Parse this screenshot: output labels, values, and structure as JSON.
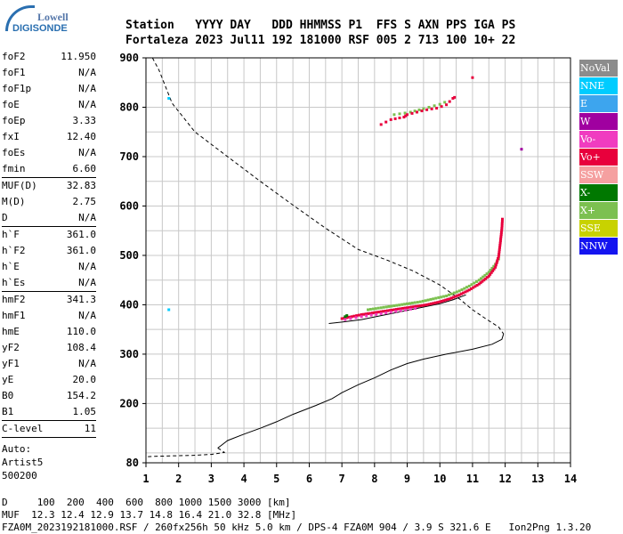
{
  "logo": {
    "line1": "Lowell",
    "line2": "DIGISONDE"
  },
  "header": {
    "row1": "Station   YYYY DAY   DDD HHMMSS P1  FFS S AXN PPS IGA PS",
    "row2": "Fortaleza 2023 Jul11 192 181000 RSF 005 2 713 100 10+ 22"
  },
  "params": {
    "group1": [
      {
        "k": "foF2",
        "v": "11.950"
      },
      {
        "k": "foF1",
        "v": "N/A"
      },
      {
        "k": "foF1p",
        "v": "N/A"
      },
      {
        "k": "foE",
        "v": "N/A"
      },
      {
        "k": "foEp",
        "v": "3.33"
      },
      {
        "k": "fxI",
        "v": "12.40"
      },
      {
        "k": "foEs",
        "v": "N/A"
      },
      {
        "k": "fmin",
        "v": "6.60"
      }
    ],
    "group2": [
      {
        "k": "MUF(D)",
        "v": "32.83"
      },
      {
        "k": "M(D)",
        "v": "2.75"
      },
      {
        "k": "D",
        "v": "N/A"
      }
    ],
    "group3": [
      {
        "k": "h`F",
        "v": "361.0"
      },
      {
        "k": "h`F2",
        "v": "361.0"
      },
      {
        "k": "h`E",
        "v": "N/A"
      },
      {
        "k": "h`Es",
        "v": "N/A"
      }
    ],
    "group4": [
      {
        "k": "hmF2",
        "v": "341.3"
      },
      {
        "k": "hmF1",
        "v": "N/A"
      },
      {
        "k": "hmE",
        "v": "110.0"
      },
      {
        "k": "yF2",
        "v": "108.4"
      },
      {
        "k": "yF1",
        "v": "N/A"
      },
      {
        "k": "yE",
        "v": "20.0"
      },
      {
        "k": "B0",
        "v": "154.2"
      },
      {
        "k": "B1",
        "v": "1.05"
      }
    ],
    "clevel": {
      "k": "C-level",
      "v": "11"
    },
    "status": [
      "Auto:",
      "Artist5",
      "500200"
    ]
  },
  "legend": [
    {
      "label": "NoVal",
      "color": "#8c8c8c"
    },
    {
      "label": "NNE",
      "color": "#00ccff"
    },
    {
      "label": "E",
      "color": "#3da5ee"
    },
    {
      "label": "W",
      "color": "#a000a0"
    },
    {
      "label": "Vo-",
      "color": "#f03cc0"
    },
    {
      "label": "Vo+",
      "color": "#e8003c"
    },
    {
      "label": "SSW",
      "color": "#f5a0a0"
    },
    {
      "label": "X-",
      "color": "#007800"
    },
    {
      "label": "X+",
      "color": "#7cc050"
    },
    {
      "label": "SSE",
      "color": "#c8d200"
    },
    {
      "label": "NNW",
      "color": "#1414f0"
    }
  ],
  "bottom": {
    "line1": "D     100  200  400  600  800 1000 1500 3000 [km]",
    "line2": "MUF  12.3 12.4 12.9 13.7 14.8 16.4 21.0 32.8 [MHz]",
    "line3": "FZA0M_2023192181000.RSF / 260fx256h 50 kHz 5.0 km / DPS-4 FZA0M 904 / 3.9 S 321.6 E   Ion2Png 1.3.20"
  },
  "chart_data": {
    "type": "scatter",
    "title": "",
    "xlabel": "",
    "ylabel": "",
    "xlim": [
      1,
      14
    ],
    "ylim": [
      80,
      900
    ],
    "xticks": [
      1,
      2,
      3,
      4,
      5,
      6,
      7,
      8,
      9,
      10,
      11,
      12,
      13,
      14
    ],
    "yticks": [
      100,
      200,
      300,
      400,
      500,
      600,
      700,
      800,
      900
    ],
    "y_tick_labels": [
      {
        "v": 80,
        "t": "80"
      },
      {
        "v": 200,
        "t": "200"
      },
      {
        "v": 300,
        "t": "300"
      },
      {
        "v": 400,
        "t": "400"
      },
      {
        "v": 500,
        "t": "500"
      },
      {
        "v": 600,
        "t": "600"
      },
      {
        "v": 700,
        "t": "700"
      },
      {
        "v": 800,
        "t": "800"
      },
      {
        "v": 900,
        "t": "900"
      }
    ],
    "grid": true,
    "trace_vo_plus": [
      [
        7.0,
        372
      ],
      [
        7.3,
        376
      ],
      [
        7.6,
        380
      ],
      [
        8.0,
        384
      ],
      [
        8.4,
        388
      ],
      [
        8.8,
        392
      ],
      [
        9.2,
        396
      ],
      [
        9.6,
        400
      ],
      [
        10.0,
        406
      ],
      [
        10.3,
        412
      ],
      [
        10.6,
        420
      ],
      [
        10.9,
        430
      ],
      [
        11.2,
        442
      ],
      [
        11.5,
        458
      ],
      [
        11.7,
        476
      ],
      [
        11.8,
        498
      ],
      [
        11.85,
        525
      ],
      [
        11.9,
        555
      ],
      [
        11.92,
        578
      ]
    ],
    "trace_x_plus": [
      [
        7.8,
        390
      ],
      [
        8.2,
        394
      ],
      [
        8.6,
        398
      ],
      [
        9.0,
        402
      ],
      [
        9.4,
        406
      ],
      [
        9.8,
        412
      ],
      [
        10.2,
        418
      ],
      [
        10.6,
        428
      ],
      [
        10.9,
        438
      ],
      [
        11.2,
        450
      ],
      [
        11.5,
        466
      ],
      [
        11.7,
        482
      ],
      [
        11.85,
        498
      ]
    ],
    "trace_vo_minus": [
      [
        7.1,
        370
      ],
      [
        7.6,
        376
      ],
      [
        8.2,
        382
      ],
      [
        8.8,
        388
      ],
      [
        9.4,
        394
      ]
    ],
    "trace_x_minus": [
      [
        7.1,
        376
      ],
      [
        7.2,
        380
      ]
    ],
    "upper_cluster": [
      [
        8.2,
        765
      ],
      [
        8.5,
        775
      ],
      [
        8.9,
        780
      ],
      [
        9.0,
        785
      ],
      [
        9.3,
        790
      ],
      [
        9.6,
        795
      ],
      [
        9.9,
        798
      ],
      [
        10.2,
        805
      ],
      [
        10.4,
        818
      ],
      [
        10.5,
        822
      ]
    ],
    "upper_cluster_xplus": [
      [
        8.6,
        785
      ],
      [
        9.1,
        790
      ],
      [
        9.5,
        797
      ],
      [
        10.0,
        806
      ],
      [
        10.3,
        814
      ]
    ],
    "isolated_points": [
      {
        "x": 1.7,
        "y": 818,
        "c": "#00ccff"
      },
      {
        "x": 1.7,
        "y": 390,
        "c": "#00ccff"
      },
      {
        "x": 11.0,
        "y": 860,
        "c": "#e8003c"
      },
      {
        "x": 12.5,
        "y": 715,
        "c": "#a000a0"
      }
    ],
    "profile_dashed": [
      [
        1.2,
        900
      ],
      [
        1.4,
        875
      ],
      [
        1.8,
        808
      ],
      [
        2.5,
        750
      ],
      [
        3.5,
        700
      ],
      [
        4.5,
        650
      ],
      [
        5.5,
        602
      ],
      [
        6.5,
        555
      ],
      [
        7.5,
        512
      ],
      [
        8.4,
        490
      ],
      [
        9.2,
        468
      ],
      [
        10.0,
        440
      ],
      [
        10.6,
        412
      ],
      [
        11.0,
        390
      ],
      [
        11.4,
        372
      ],
      [
        11.8,
        355
      ],
      [
        11.95,
        341
      ]
    ],
    "profile_solid": [
      [
        11.95,
        341
      ],
      [
        11.9,
        330
      ],
      [
        11.6,
        320
      ],
      [
        11.0,
        310
      ],
      [
        10.2,
        300
      ],
      [
        9.5,
        290
      ],
      [
        9.0,
        281
      ],
      [
        8.5,
        268
      ],
      [
        8.0,
        252
      ],
      [
        7.5,
        238
      ],
      [
        7.0,
        222
      ],
      [
        6.7,
        210
      ],
      [
        6.2,
        196
      ],
      [
        5.5,
        178
      ],
      [
        5.0,
        163
      ],
      [
        4.5,
        150
      ],
      [
        4.0,
        138
      ],
      [
        3.5,
        125
      ],
      [
        3.3,
        115
      ],
      [
        3.2,
        110
      ]
    ],
    "profile_base_dashed": [
      [
        3.2,
        110
      ],
      [
        3.35,
        104
      ],
      [
        3.4,
        101
      ],
      [
        3.0,
        97
      ],
      [
        2.4,
        95
      ],
      [
        1.8,
        94
      ],
      [
        1.2,
        93
      ],
      [
        1.0,
        92
      ]
    ],
    "leading_edge_solid": [
      [
        6.6,
        362
      ],
      [
        7.0,
        365
      ],
      [
        7.6,
        370
      ],
      [
        8.2,
        378
      ],
      [
        8.8,
        386
      ],
      [
        9.4,
        394
      ],
      [
        10.0,
        402
      ],
      [
        10.4,
        410
      ],
      [
        10.8,
        420
      ]
    ]
  }
}
